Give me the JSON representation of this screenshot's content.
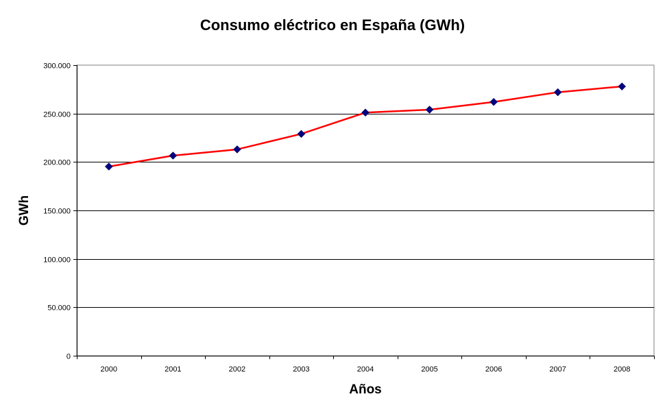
{
  "chart_data": {
    "type": "line",
    "title": "Consumo eléctrico en España (GWh)",
    "xlabel": "Años",
    "ylabel": "GWh",
    "categories": [
      "2000",
      "2001",
      "2002",
      "2003",
      "2004",
      "2005",
      "2006",
      "2007",
      "2008"
    ],
    "series": [
      {
        "name": "Consumo eléctrico",
        "values": [
          195300,
          206600,
          213000,
          229000,
          251000,
          254000,
          262000,
          272000,
          278000
        ],
        "line_color": "#ff0000",
        "marker_color": "#000080",
        "marker": "diamond"
      }
    ],
    "ylim": [
      0,
      300000
    ],
    "yticks": [
      0,
      50000,
      100000,
      150000,
      200000,
      250000,
      300000
    ],
    "ytick_labels": [
      "0",
      "50.000",
      "100.000",
      "150.000",
      "200.000",
      "250.000",
      "300.000"
    ],
    "grid": true,
    "legend": "none"
  }
}
